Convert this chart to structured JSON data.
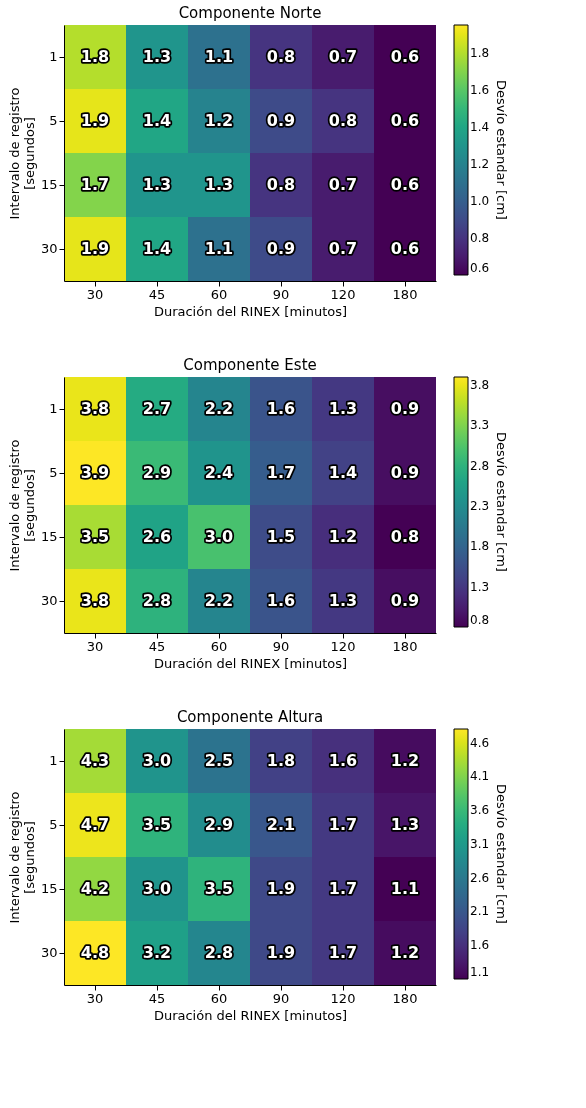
{
  "chart_data": [
    {
      "type": "heatmap",
      "title": "Componente Norte",
      "xlabel": "Duración del RINEX [minutos]",
      "ylabel": "Intervalo de registro\n[segundos]",
      "clabel": "Desvío estandar [cm]",
      "data_labels": true,
      "categories": [
        "30",
        "45",
        "60",
        "90",
        "120",
        "180"
      ],
      "y_categories": [
        "1",
        "5",
        "15",
        "30"
      ],
      "cells": [
        [
          1.8,
          1.3,
          1.1,
          0.8,
          0.7,
          0.6
        ],
        [
          1.9,
          1.4,
          1.2,
          0.9,
          0.8,
          0.6
        ],
        [
          1.7,
          1.3,
          1.3,
          0.8,
          0.7,
          0.6
        ],
        [
          1.9,
          1.4,
          1.1,
          0.9,
          0.7,
          0.6
        ]
      ],
      "clim": [
        0.6,
        1.95
      ],
      "cticks": [
        0.6,
        0.8,
        {
          "value": 1.0,
          "label": "1.0"
        },
        1.2,
        1.4,
        1.6,
        1.8
      ]
    },
    {
      "type": "heatmap",
      "title": "Componente Este",
      "xlabel": "Duración del RINEX [minutos]",
      "ylabel": "Intervalo de registro\n[segundos]",
      "clabel": "Desvío estandar [cm]",
      "data_labels": true,
      "categories": [
        "30",
        "45",
        "60",
        "90",
        "120",
        "180"
      ],
      "y_categories": [
        "1",
        "5",
        "15",
        "30"
      ],
      "cells": [
        [
          3.8,
          2.7,
          2.2,
          1.6,
          1.3,
          0.9
        ],
        [
          3.9,
          2.9,
          2.4,
          1.7,
          1.4,
          0.9
        ],
        [
          3.5,
          2.6,
          3.0,
          1.5,
          1.2,
          0.8
        ],
        [
          3.8,
          2.8,
          2.2,
          1.6,
          1.3,
          0.9
        ]
      ],
      "cell_labels": [
        [
          "3.8",
          "2.7",
          "2.2",
          "1.6",
          "1.3",
          "0.9"
        ],
        [
          "3.9",
          "2.9",
          "2.4",
          "1.7",
          "1.4",
          "0.9"
        ],
        [
          "3.5",
          "2.6",
          "3.0",
          "1.5",
          "1.2",
          "0.8"
        ],
        [
          "3.8",
          "2.8",
          "2.2",
          "1.6",
          "1.3",
          "0.9"
        ]
      ],
      "clim": [
        0.8,
        3.9
      ],
      "cticks": [
        0.8,
        1.3,
        1.8,
        2.3,
        2.8,
        3.3,
        3.8
      ]
    },
    {
      "type": "heatmap",
      "title": "Componente Altura",
      "xlabel": "Duración del RINEX [minutos]",
      "ylabel": "Intervalo de registro\n[segundos]",
      "clabel": "Desvío estandar [cm]",
      "data_labels": true,
      "categories": [
        "30",
        "45",
        "60",
        "90",
        "120",
        "180"
      ],
      "y_categories": [
        "1",
        "5",
        "15",
        "30"
      ],
      "cells": [
        [
          4.3,
          3.0,
          2.5,
          1.8,
          1.6,
          1.2
        ],
        [
          4.7,
          3.5,
          2.9,
          2.1,
          1.7,
          1.3
        ],
        [
          4.2,
          3.0,
          3.5,
          1.9,
          1.7,
          1.1
        ],
        [
          4.8,
          3.2,
          2.8,
          1.9,
          1.7,
          1.2
        ]
      ],
      "cell_labels": [
        [
          "4.3",
          "3.0",
          "2.5",
          "1.8",
          "1.6",
          "1.2"
        ],
        [
          "4.7",
          "3.5",
          "2.9",
          "2.1",
          "1.7",
          "1.3"
        ],
        [
          "4.2",
          "3.0",
          "3.5",
          "1.9",
          "1.7",
          "1.1"
        ],
        [
          "4.8",
          "3.2",
          "2.8",
          "1.9",
          "1.7",
          "1.2"
        ]
      ],
      "clim": [
        1.1,
        4.8
      ],
      "cticks": [
        1.1,
        1.6,
        2.1,
        2.6,
        3.1,
        3.6,
        4.1,
        4.6
      ]
    }
  ]
}
